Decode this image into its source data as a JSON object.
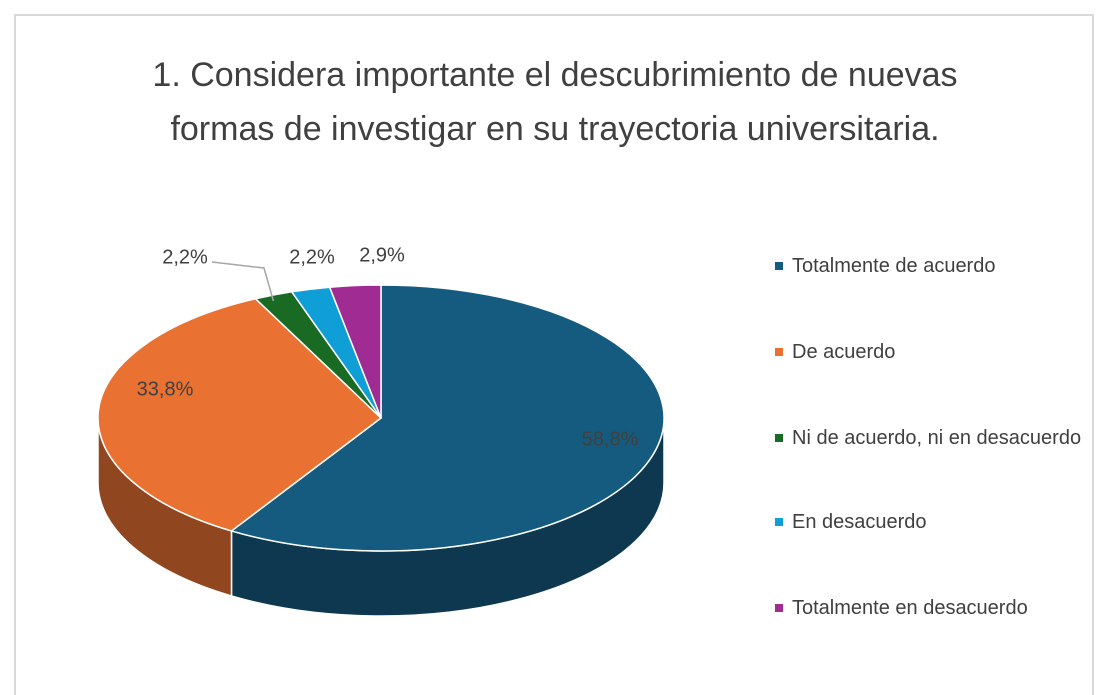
{
  "chart_data": {
    "type": "pie",
    "title": "1. Considera importante el descubrimiento de nuevas formas de investigar en su trayectoria universitaria.",
    "categories": [
      "Totalmente de acuerdo",
      "De acuerdo",
      "Ni de acuerdo, ni en desacuerdo",
      "En desacuerdo",
      "Totalmente en desacuerdo"
    ],
    "values": [
      58.8,
      33.8,
      2.2,
      2.2,
      2.9
    ],
    "value_labels": [
      "58,8%",
      "33,8%",
      "2,2%",
      "2,2%",
      "2,9%"
    ],
    "colors": [
      "#155b7f",
      "#e97132",
      "#196b24",
      "#0f9ed5",
      "#a02b93"
    ],
    "legend": "right"
  }
}
